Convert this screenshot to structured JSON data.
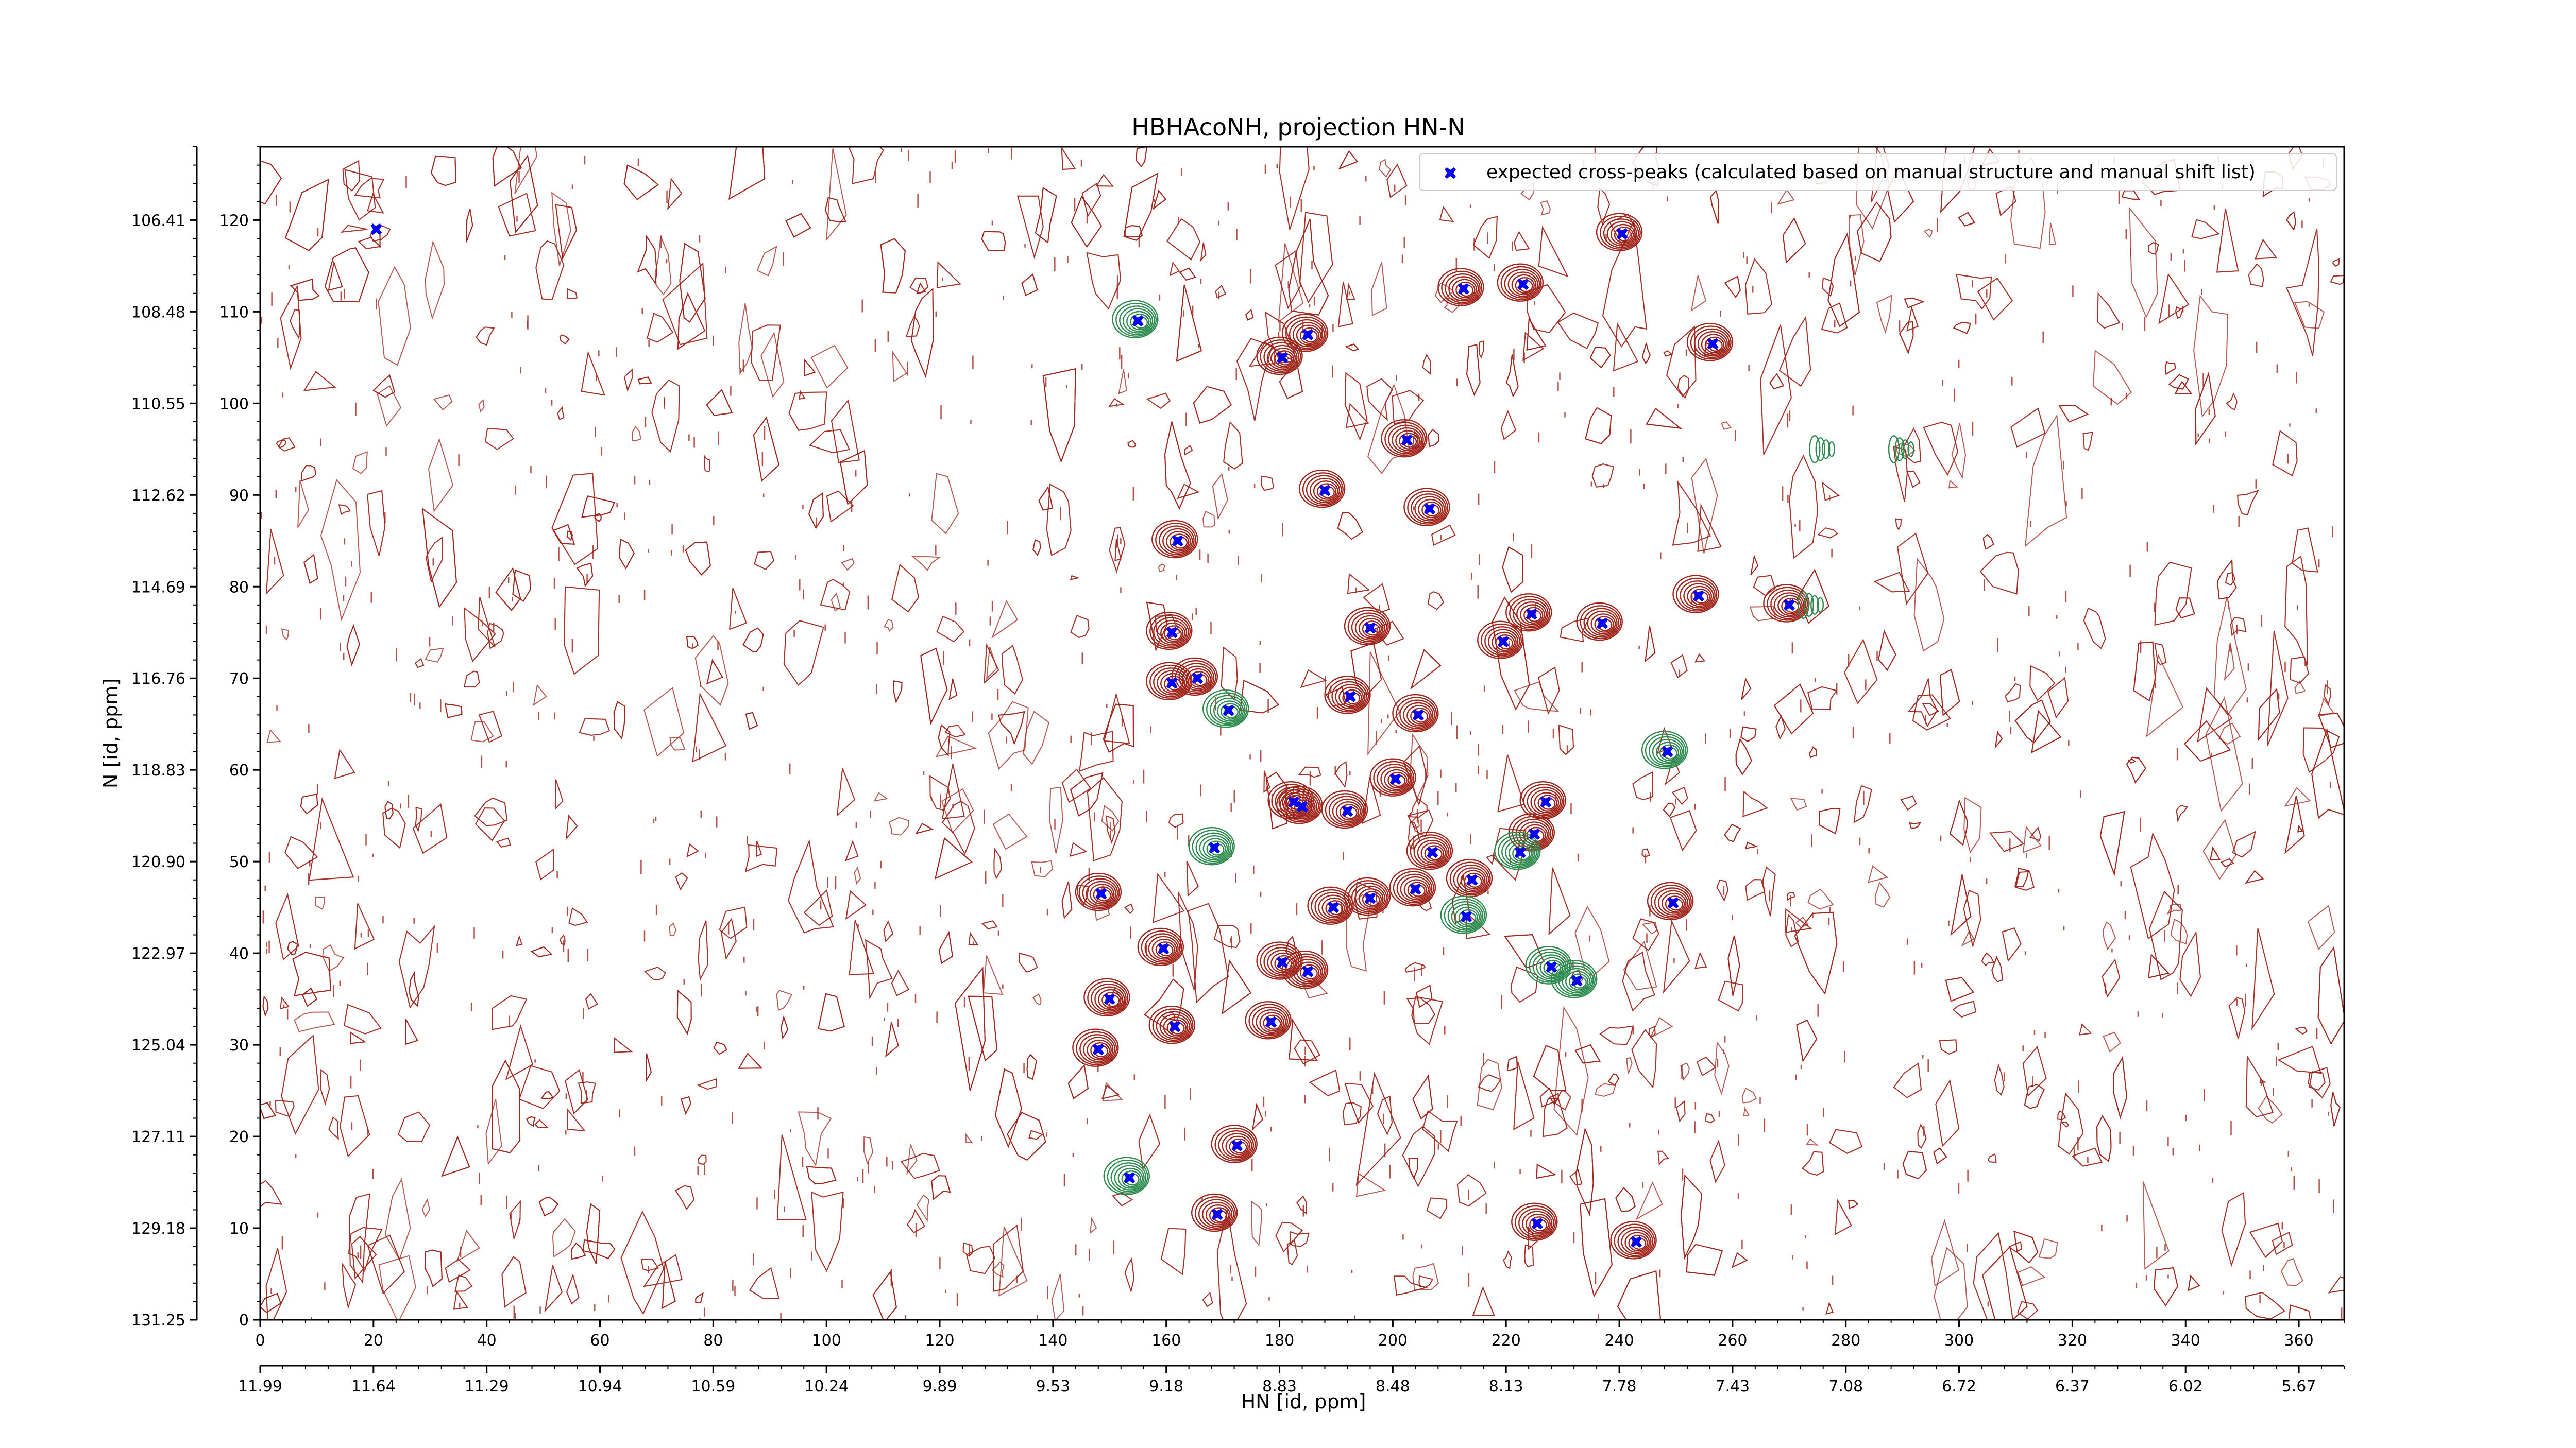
{
  "chart_data": {
    "type": "scatter",
    "title": "HBHAcoNH, projection HN-N",
    "xlabel": "HN [id, ppm]",
    "ylabel": "N [id, ppm]",
    "xlim": [
      0,
      368
    ],
    "ylim": [
      0,
      128
    ],
    "x_index_ticks": [
      "0",
      "20",
      "40",
      "60",
      "80",
      "100",
      "120",
      "140",
      "160",
      "180",
      "200",
      "220",
      "240",
      "260",
      "280",
      "300",
      "320",
      "340",
      "360"
    ],
    "x_ppm_ticks": [
      "11.99",
      "11.64",
      "11.29",
      "10.94",
      "10.59",
      "10.24",
      "9.89",
      "9.53",
      "9.18",
      "8.83",
      "8.48",
      "8.13",
      "7.78",
      "7.43",
      "7.08",
      "6.72",
      "6.37",
      "6.02",
      "5.67"
    ],
    "y_index_ticks": [
      "0",
      "10",
      "20",
      "30",
      "40",
      "50",
      "60",
      "70",
      "80",
      "90",
      "100",
      "110",
      "120"
    ],
    "y_ppm_ticks": [
      "131.25",
      "129.18",
      "127.11",
      "125.04",
      "122.97",
      "120.90",
      "118.83",
      "116.76",
      "114.69",
      "112.62",
      "110.55",
      "108.48",
      "106.41"
    ],
    "legend": {
      "label": "expected cross-peaks (calculated based on manual structure and manual shift list)",
      "position": "top-right"
    },
    "colors": {
      "marker": "#0000ff",
      "positive_contour": "#a0261c",
      "negative_contour": "#2e8b4e",
      "axis": "#000000"
    },
    "series": [
      {
        "name": "expected cross-peaks (calculated based on manual structure and manual shift list)",
        "points": [
          [
            20.5,
            119
          ],
          [
            155,
            109
          ],
          [
            180.5,
            105
          ],
          [
            185,
            107.5
          ],
          [
            212.5,
            112.5
          ],
          [
            223,
            113
          ],
          [
            240.5,
            118.5
          ],
          [
            256.5,
            106.5
          ],
          [
            202.5,
            96
          ],
          [
            188,
            90.5
          ],
          [
            206.5,
            88.5
          ],
          [
            162,
            85
          ],
          [
            254,
            79
          ],
          [
            270,
            78
          ],
          [
            224.5,
            77
          ],
          [
            237,
            76
          ],
          [
            161,
            75
          ],
          [
            196,
            75.5
          ],
          [
            219.5,
            74
          ],
          [
            165.5,
            70
          ],
          [
            161,
            69.5
          ],
          [
            192.5,
            68
          ],
          [
            171,
            66.5
          ],
          [
            204.5,
            66
          ],
          [
            248.5,
            62
          ],
          [
            200.5,
            59
          ],
          [
            182.5,
            56.5
          ],
          [
            184,
            56
          ],
          [
            192,
            55.5
          ],
          [
            227,
            56.5
          ],
          [
            225,
            53
          ],
          [
            168.5,
            51.5
          ],
          [
            207,
            51
          ],
          [
            222.5,
            51
          ],
          [
            214,
            48
          ],
          [
            204,
            47
          ],
          [
            148.5,
            46.5
          ],
          [
            196,
            46
          ],
          [
            189.5,
            45
          ],
          [
            249.5,
            45.5
          ],
          [
            213,
            44
          ],
          [
            159.5,
            40.5
          ],
          [
            180.5,
            39
          ],
          [
            228,
            38.5
          ],
          [
            185,
            38
          ],
          [
            232.5,
            37
          ],
          [
            150,
            35
          ],
          [
            161.5,
            32
          ],
          [
            178.5,
            32.5
          ],
          [
            148,
            29.5
          ],
          [
            172.5,
            19
          ],
          [
            153.5,
            15.5
          ],
          [
            169,
            11.5
          ],
          [
            225.5,
            10.5
          ],
          [
            243,
            8.5
          ]
        ]
      }
    ]
  }
}
